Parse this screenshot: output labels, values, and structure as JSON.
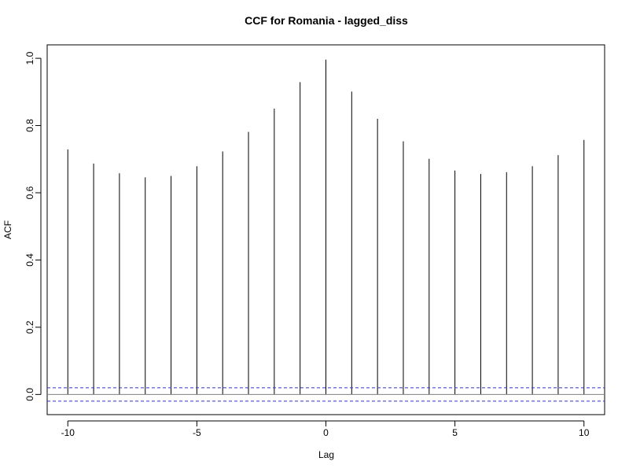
{
  "chart_data": {
    "type": "bar",
    "title": "CCF for Romania - lagged_diss",
    "xlabel": "Lag",
    "ylabel": "ACF",
    "xlim": [
      -10.8,
      10.8
    ],
    "ylim": [
      -0.06,
      1.04
    ],
    "x_ticks": [
      -10,
      -5,
      0,
      5,
      10
    ],
    "y_ticks": [
      0.0,
      0.2,
      0.4,
      0.6,
      0.8,
      1.0
    ],
    "x_tick_labels": [
      "-10",
      "-5",
      "0",
      "5",
      "10"
    ],
    "y_tick_labels": [
      "0.0",
      "0.2",
      "0.4",
      "0.6",
      "0.8",
      "1.0"
    ],
    "x": [
      -10,
      -9,
      -8,
      -7,
      -6,
      -5,
      -4,
      -3,
      -2,
      -1,
      0,
      1,
      2,
      3,
      4,
      5,
      6,
      7,
      8,
      9,
      10
    ],
    "values": [
      0.729,
      0.687,
      0.658,
      0.646,
      0.65,
      0.679,
      0.723,
      0.781,
      0.85,
      0.929,
      0.996,
      0.901,
      0.82,
      0.753,
      0.701,
      0.666,
      0.656,
      0.661,
      0.679,
      0.712,
      0.757
    ],
    "confidence_bounds": [
      0.02,
      -0.02
    ],
    "zero_line": 0,
    "grid": false,
    "legend": "none",
    "colors": {
      "bars": "#000000",
      "axis": "#000000",
      "zero_line": "#808080",
      "confidence_lines": "#3333cc"
    }
  }
}
